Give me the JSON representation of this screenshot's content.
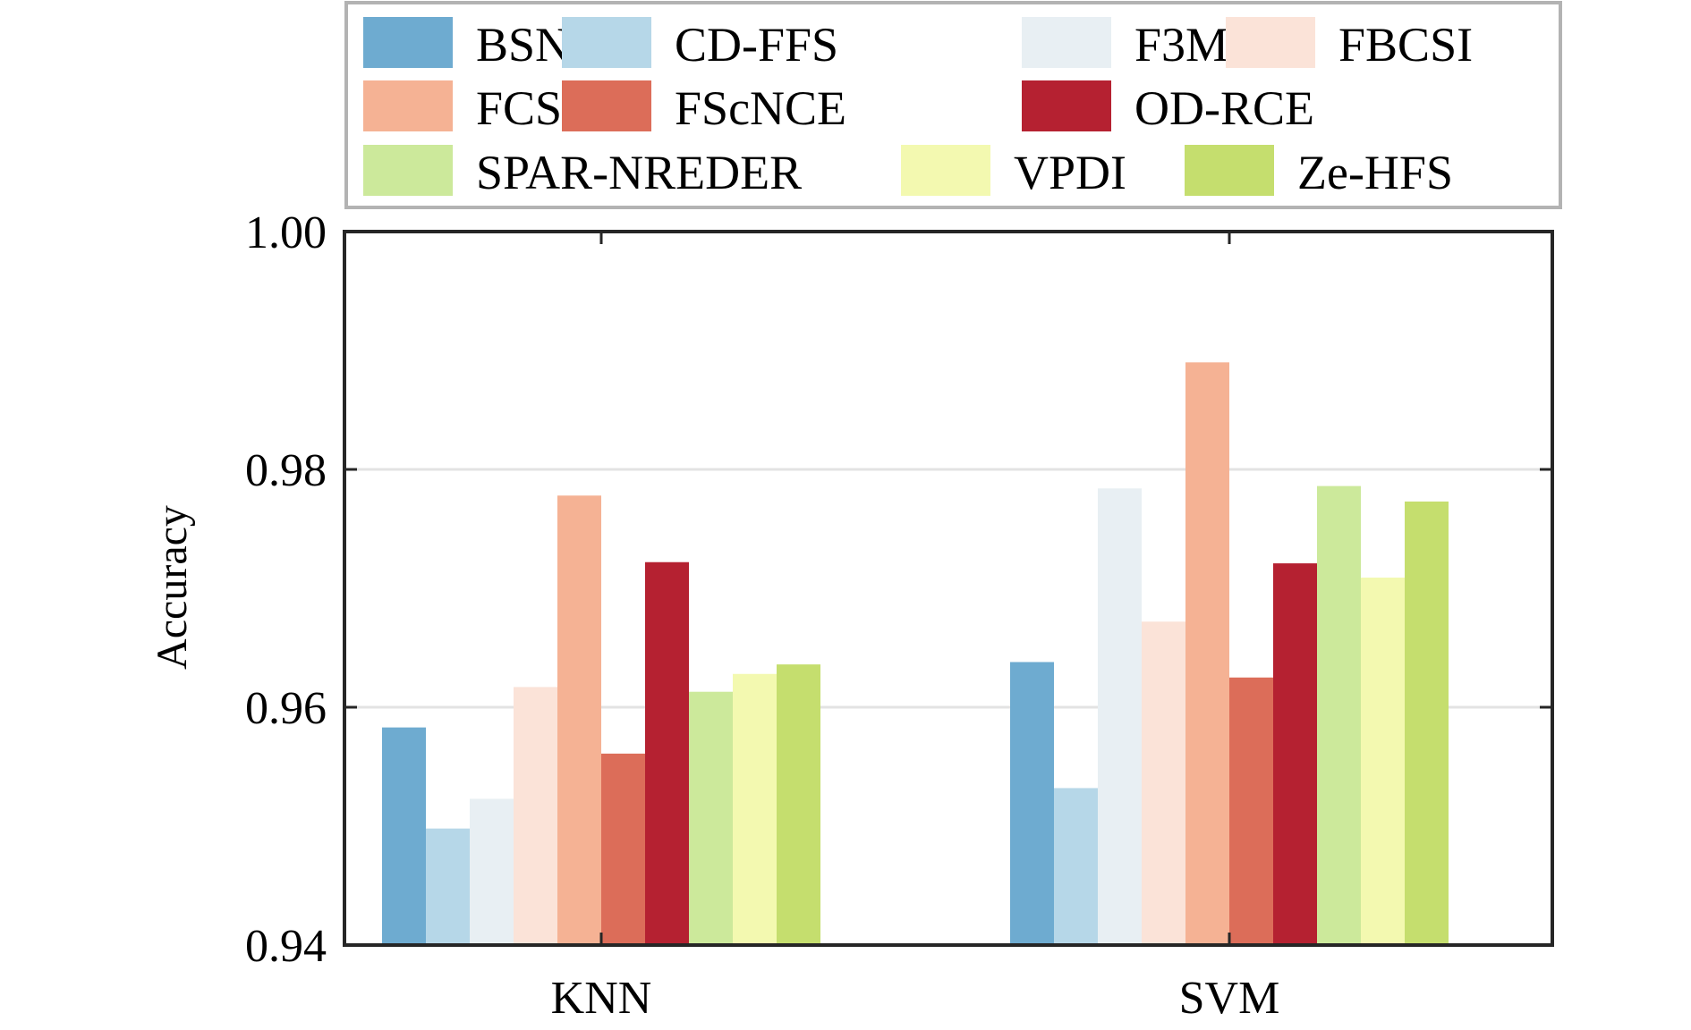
{
  "chart_data": {
    "type": "bar",
    "title": "",
    "xlabel": "",
    "ylabel": "Accuracy",
    "ylim": [
      0.94,
      1.0
    ],
    "yticks": [
      "0.94",
      "0.96",
      "0.98",
      "1.00"
    ],
    "ytick_values": [
      0.94,
      0.96,
      0.98,
      1.0
    ],
    "grid": "horizontal",
    "legend_position": "top",
    "categories": [
      "KNN",
      "SVM"
    ],
    "series": [
      {
        "name": "BSNID",
        "color": "#6eabd0",
        "values": [
          0.9583,
          0.9638
        ]
      },
      {
        "name": "CD-FFS",
        "color": "#b6d7e8",
        "values": [
          0.9498,
          0.9532
        ]
      },
      {
        "name": "F3M",
        "color": "#e8eff3",
        "values": [
          0.9523,
          0.9784
        ]
      },
      {
        "name": "FBCSI",
        "color": "#fbe3d8",
        "values": [
          0.9617,
          0.9672
        ]
      },
      {
        "name": "FCSSC",
        "color": "#f5b294",
        "values": [
          0.9778,
          0.989
        ]
      },
      {
        "name": "FScNCE",
        "color": "#dc6d59",
        "values": [
          0.9561,
          0.9625
        ]
      },
      {
        "name": "OD-RCE",
        "color": "#b52131",
        "values": [
          0.9722,
          0.9721
        ]
      },
      {
        "name": "SPAR-NREDER",
        "color": "#cce99b",
        "values": [
          0.9613,
          0.9786
        ]
      },
      {
        "name": "VPDI",
        "color": "#f3f9b0",
        "values": [
          0.9628,
          0.9709
        ]
      },
      {
        "name": "Ze-HFS",
        "color": "#c5de6e",
        "values": [
          0.9636,
          0.9773
        ]
      }
    ]
  }
}
